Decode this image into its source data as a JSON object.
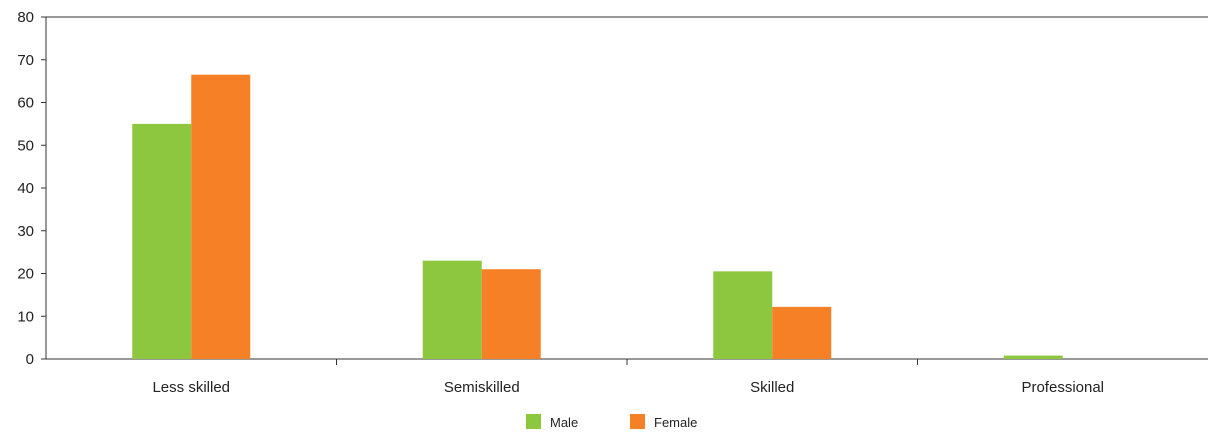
{
  "chart_data": {
    "type": "bar",
    "categories": [
      "Less skilled",
      "Semiskilled",
      "Skilled",
      "Professional"
    ],
    "series": [
      {
        "name": "Male",
        "values": [
          55,
          23,
          20.5,
          0.8
        ],
        "color": "#8dc63f"
      },
      {
        "name": "Female",
        "values": [
          66.5,
          21,
          12.2,
          0
        ],
        "color": "#f58025"
      }
    ],
    "yticks": [
      0,
      10,
      20,
      30,
      40,
      50,
      60,
      70,
      80
    ],
    "ylim": [
      0,
      80
    ],
    "grid": false,
    "legend_position": "bottom-center",
    "title": "",
    "xlabel": "",
    "ylabel": ""
  }
}
